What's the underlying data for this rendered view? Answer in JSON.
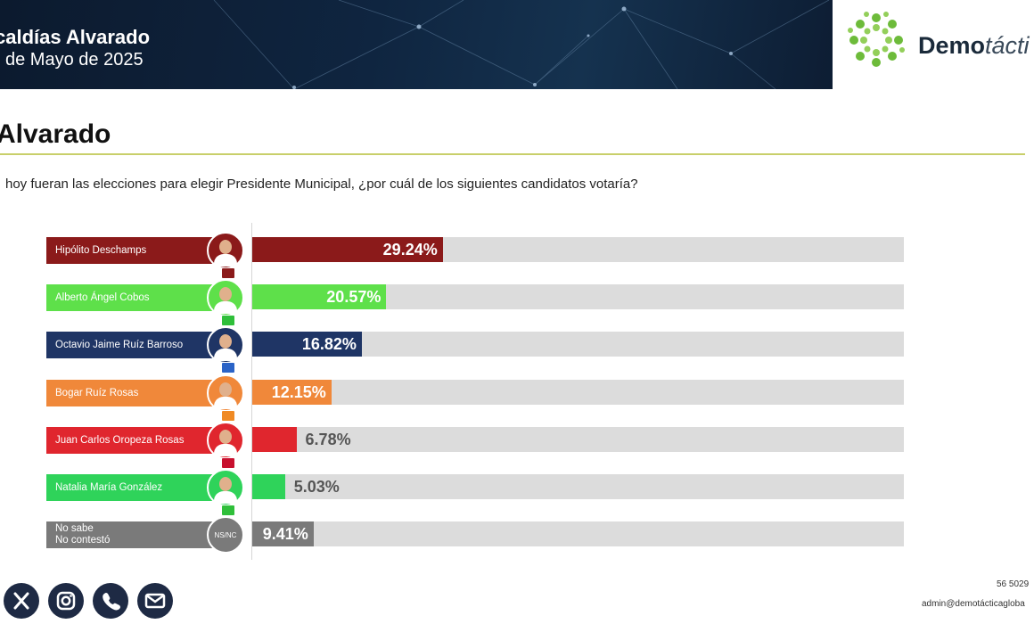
{
  "header": {
    "title_line1": "caldías Alvarado",
    "title_line2": " de Mayo de 2025"
  },
  "logo": {
    "brand_bold": "Demo",
    "brand_light": "tácti"
  },
  "section_title": "Alvarado",
  "question": " hoy fueran las elecciones para elegir Presidente Municipal, ¿por cuál de los siguientes candidatos votaría?",
  "chart_data": {
    "type": "bar",
    "orientation": "horizontal",
    "categories": [
      "Hipólito Deschamps",
      "Alberto Ángel Cobos",
      "Octavio Jaime Ruíz Barroso",
      "Bogar Ruíz Rosas",
      "Juan Carlos Oropeza Rosas",
      "Natalia Maria González",
      "No sabe / No contestó"
    ],
    "category_lines": [
      [
        "Hipólito Deschamps"
      ],
      [
        "Alberto Ángel Cobos"
      ],
      [
        "Octavio Jaime Ruíz Barroso"
      ],
      [
        "Bogar Ruíz Rosas"
      ],
      [
        "Juan Carlos Oropeza Rosas"
      ],
      [
        "Natalia María González"
      ],
      [
        "No sabe",
        "No contestó"
      ]
    ],
    "values": [
      29.24,
      20.57,
      16.82,
      12.15,
      6.78,
      5.03,
      9.41
    ],
    "value_labels": [
      "29.24%",
      "20.57%",
      "16.82%",
      "12.15%",
      "6.78%",
      "5.03%",
      "9.41%"
    ],
    "colors": [
      "#8b1a1a",
      "#5ee04a",
      "#1f3565",
      "#f0883a",
      "#e0262e",
      "#2fd35a",
      "#7a7a7a"
    ],
    "value_label_colors": [
      "#ffffff",
      "#ffffff",
      "#ffffff",
      "#ffffff",
      "#555555",
      "#555555",
      "#ffffff"
    ],
    "avatar_badges": [
      "#8b1a1a",
      "#2fbf3a",
      "#2a63c7",
      "#f08a24",
      "#c8102e",
      "#2fbf3a",
      ""
    ],
    "avatar_text": [
      "",
      "",
      "",
      "",
      "",
      "",
      "NS/NC"
    ],
    "xlim": [
      0,
      100
    ],
    "grid": false
  },
  "footer": {
    "icons": [
      "x-icon",
      "instagram-icon",
      "phone-icon",
      "mail-icon"
    ],
    "phone": "56 5029",
    "email": "admin@demotácticagloba"
  }
}
